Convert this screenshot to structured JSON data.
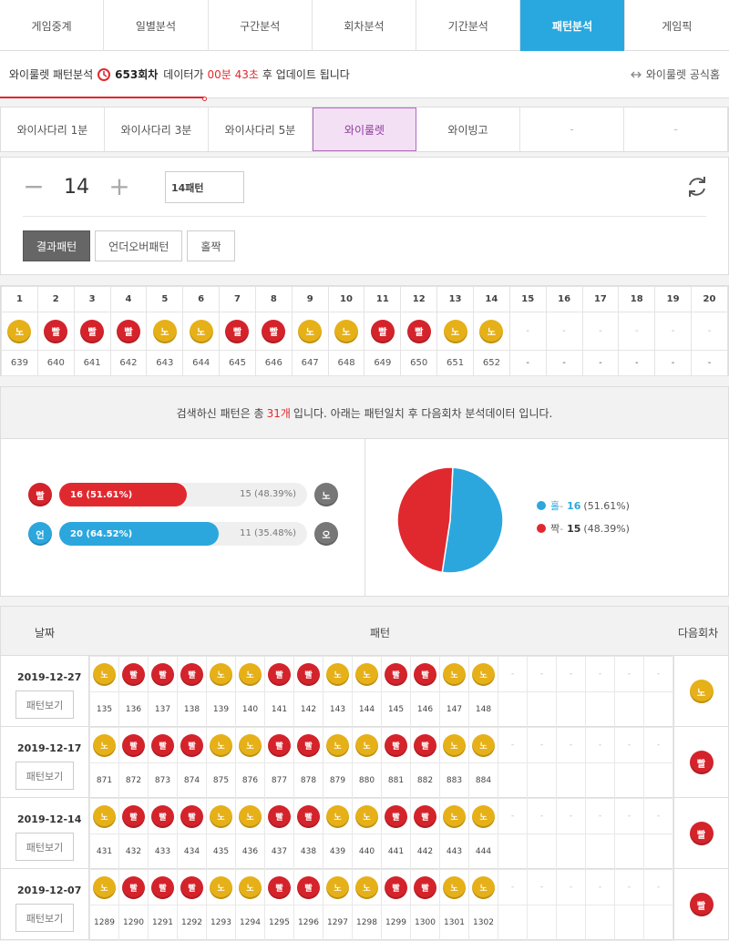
{
  "topnav": [
    "게임중계",
    "일별분석",
    "구간분석",
    "회차분석",
    "기간분석",
    "패턴분석",
    "게임픽"
  ],
  "topnav_active": 5,
  "info": {
    "prefix": "와이룰렛 패턴분석",
    "round": "653회차",
    "mid": "데이터가",
    "timer": "00분 43초",
    "suffix": "후 업데이트 됩니다",
    "official": "와이룰렛 공식홈"
  },
  "subnav": [
    "와이사다리 1분",
    "와이사다리 3분",
    "와이사다리 5분",
    "와이룰렛",
    "와이빙고",
    "-",
    "-"
  ],
  "subnav_active": 3,
  "stepper": {
    "value": "14",
    "minus": "−",
    "plus": "+",
    "pattern_label": "14패턴"
  },
  "filters": [
    "결과패턴",
    "언더오버패턴",
    "홀짝"
  ],
  "filter_active": 0,
  "grid": {
    "cols": [
      "1",
      "2",
      "3",
      "4",
      "5",
      "6",
      "7",
      "8",
      "9",
      "10",
      "11",
      "12",
      "13",
      "14",
      "15",
      "16",
      "17",
      "18",
      "19",
      "20"
    ],
    "balls": [
      "노",
      "빨",
      "빨",
      "빨",
      "노",
      "노",
      "빨",
      "빨",
      "노",
      "노",
      "빨",
      "빨",
      "노",
      "노",
      "-",
      "-",
      "-",
      "-",
      "-",
      "-"
    ],
    "rounds": [
      "639",
      "640",
      "641",
      "642",
      "643",
      "644",
      "645",
      "646",
      "647",
      "648",
      "649",
      "650",
      "651",
      "652",
      "-",
      "-",
      "-",
      "-",
      "-",
      "-"
    ]
  },
  "summary": {
    "pre": "검색하신 패턴은 총",
    "count": "31개",
    "post": "입니다. 아래는 패턴일치 후 다음회차 분석데이터 입니다.",
    "bars": [
      {
        "left": "빨",
        "fill_label": "16 (51.61%)",
        "fill_pct": 51.61,
        "rest": "15 (48.39%)",
        "right": "노",
        "color": "r"
      },
      {
        "left": "언",
        "fill_label": "20 (64.52%)",
        "fill_pct": 64.52,
        "rest": "11 (35.48%)",
        "right": "오",
        "color": "b"
      }
    ],
    "pie": [
      {
        "label": "홀",
        "count": "16",
        "pct": "(51.61%)",
        "value": 16,
        "color": "#2ca7dd"
      },
      {
        "label": "짝",
        "count": "15",
        "pct": "(48.39%)",
        "value": 15,
        "color": "#e0292f"
      }
    ]
  },
  "history": {
    "headers": {
      "date": "날짜",
      "pattern": "패턴",
      "next": "다음회차"
    },
    "view_label": "패턴보기",
    "rows": [
      {
        "date": "2019-12-27",
        "balls": [
          "노",
          "빨",
          "빨",
          "빨",
          "노",
          "노",
          "빨",
          "빨",
          "노",
          "노",
          "빨",
          "빨",
          "노",
          "노",
          "-",
          "-",
          "-",
          "-",
          "-",
          "-"
        ],
        "rounds": [
          "135",
          "136",
          "137",
          "138",
          "139",
          "140",
          "141",
          "142",
          "143",
          "144",
          "145",
          "146",
          "147",
          "148",
          "",
          "",
          "",
          "",
          "",
          ""
        ],
        "next": "노"
      },
      {
        "date": "2019-12-17",
        "balls": [
          "노",
          "빨",
          "빨",
          "빨",
          "노",
          "노",
          "빨",
          "빨",
          "노",
          "노",
          "빨",
          "빨",
          "노",
          "노",
          "-",
          "-",
          "-",
          "-",
          "-",
          "-"
        ],
        "rounds": [
          "871",
          "872",
          "873",
          "874",
          "875",
          "876",
          "877",
          "878",
          "879",
          "880",
          "881",
          "882",
          "883",
          "884",
          "",
          "",
          "",
          "",
          "",
          ""
        ],
        "next": "빨"
      },
      {
        "date": "2019-12-14",
        "balls": [
          "노",
          "빨",
          "빨",
          "빨",
          "노",
          "노",
          "빨",
          "빨",
          "노",
          "노",
          "빨",
          "빨",
          "노",
          "노",
          "-",
          "-",
          "-",
          "-",
          "-",
          "-"
        ],
        "rounds": [
          "431",
          "432",
          "433",
          "434",
          "435",
          "436",
          "437",
          "438",
          "439",
          "440",
          "441",
          "442",
          "443",
          "444",
          "",
          "",
          "",
          "",
          "",
          ""
        ],
        "next": "빨"
      },
      {
        "date": "2019-12-07",
        "balls": [
          "노",
          "빨",
          "빨",
          "빨",
          "노",
          "노",
          "빨",
          "빨",
          "노",
          "노",
          "빨",
          "빨",
          "노",
          "노",
          "-",
          "-",
          "-",
          "-",
          "-",
          "-"
        ],
        "rounds": [
          "1289",
          "1290",
          "1291",
          "1292",
          "1293",
          "1294",
          "1295",
          "1296",
          "1297",
          "1298",
          "1299",
          "1300",
          "1301",
          "1302",
          "",
          "",
          "",
          "",
          "",
          ""
        ],
        "next": "빨"
      }
    ]
  }
}
